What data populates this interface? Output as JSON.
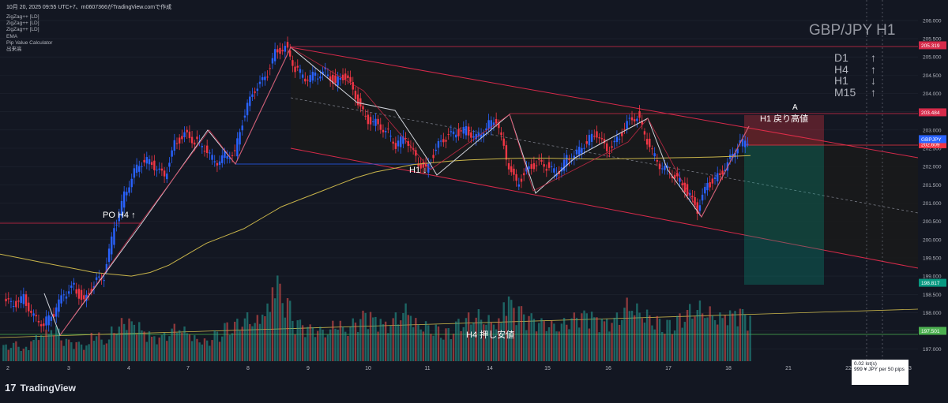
{
  "header": {
    "timestamp_text": "10月 20, 2025 09:55 UTC+7、m0607366がTradingView.comで作成"
  },
  "indicators": [
    "ZigZag++ [LD]",
    "ZigZag++ [LD]",
    "ZigZag++ [LD]",
    "EMA",
    "Pip Value Calculator",
    "出来高"
  ],
  "symbol_title": "GBP/JPY H1",
  "timeframes": [
    {
      "tf": "D1",
      "arrow": "↑"
    },
    {
      "tf": "H4",
      "arrow": "↑"
    },
    {
      "tf": "H1",
      "arrow": "↓"
    },
    {
      "tf": "M15",
      "arrow": "↑"
    }
  ],
  "annotations": {
    "po_h4": "PO H4 ↑",
    "h1_down": "H1 ↓",
    "h1_high": "H1 戻り高値",
    "point_a": "A",
    "h4_low": "H4 押し安値"
  },
  "calculator": {
    "lots": "0.02 lot(s)",
    "pips": "999 ¥ JPY per 50 pips"
  },
  "brand": {
    "logo_text": "TradingView"
  },
  "colors": {
    "background": "#131722",
    "bull": "#2962ff",
    "bear": "#f23645",
    "ema": "#c8b44a",
    "channel": "#d62a4a",
    "vol_bull": "#26a69a",
    "vol_bear": "#ef5350"
  },
  "chart_data": {
    "type": "candlestick",
    "symbol": "GBPJPY",
    "x_ticks": [
      "2",
      "3",
      "4",
      "7",
      "8",
      "9",
      "10",
      "11",
      "14",
      "15",
      "16",
      "17",
      "18",
      "21",
      "22",
      "23"
    ],
    "y_ticks": [
      197.0,
      197.5,
      198.0,
      198.5,
      199.0,
      199.5,
      200.0,
      200.5,
      201.0,
      201.5,
      202.0,
      202.5,
      203.0,
      203.5,
      204.0,
      204.5,
      205.0,
      205.5,
      206.0
    ],
    "ylim": [
      196.8,
      206.3
    ],
    "price_labels": [
      {
        "value": "205.319",
        "price": 205.319,
        "color": "#d62a4a"
      },
      {
        "value": "203.484",
        "price": 203.484,
        "color": "#d62a4a"
      },
      {
        "value": "202.609",
        "price": 202.609,
        "color": "#f23645"
      },
      {
        "value": "GBPJPY",
        "price": 202.75,
        "color": "#2962ff"
      },
      {
        "value": "198.817",
        "price": 198.817,
        "color": "#089981"
      },
      {
        "value": "197.501",
        "price": 197.501,
        "color": "#4caf50"
      }
    ],
    "close_series": [
      198.3,
      198.2,
      198.4,
      197.9,
      197.7,
      198.0,
      198.5,
      198.7,
      198.3,
      198.8,
      199.0,
      200.3,
      201.2,
      201.9,
      202.2,
      202.0,
      201.7,
      202.6,
      202.9,
      202.7,
      202.5,
      202.1,
      202.3,
      202.4,
      203.5,
      204.1,
      204.4,
      205.1,
      205.3,
      204.7,
      204.4,
      204.5,
      204.6,
      204.3,
      204.5,
      203.9,
      203.3,
      203.2,
      203.0,
      202.6,
      202.8,
      202.2,
      201.9,
      202.5,
      202.8,
      202.9,
      203.0,
      202.8,
      203.1,
      203.3,
      202.2,
      201.5,
      201.9,
      202.1,
      202.0,
      201.8,
      202.2,
      202.4,
      202.7,
      202.9,
      202.4,
      202.7,
      203.2,
      203.4,
      202.7,
      202.1,
      201.9,
      201.7,
      201.3,
      200.8,
      201.5,
      201.7,
      202.1,
      202.6,
      202.7
    ],
    "volume": [
      12,
      14,
      10,
      18,
      22,
      25,
      16,
      14,
      12,
      20,
      15,
      24,
      30,
      28,
      22,
      18,
      20,
      26,
      24,
      18,
      16,
      22,
      28,
      30,
      34,
      32,
      40,
      60,
      45,
      30,
      26,
      24,
      22,
      28,
      24,
      30,
      36,
      32,
      28,
      34,
      40,
      30,
      28,
      26,
      24,
      30,
      34,
      36,
      32,
      30,
      46,
      40,
      34,
      30,
      28,
      26,
      30,
      34,
      36,
      32,
      30,
      34,
      44,
      40,
      36,
      32,
      30,
      34,
      40,
      42,
      38,
      34,
      36,
      38,
      34
    ],
    "ema_series": [
      199.6,
      199.5,
      199.4,
      199.3,
      199.2,
      199.1,
      199.05,
      199.0,
      199.1,
      199.3,
      199.6,
      199.9,
      200.1,
      200.3,
      200.6,
      200.9,
      201.1,
      201.3,
      201.5,
      201.7,
      201.85,
      201.95,
      202.05,
      202.1,
      202.15,
      202.18,
      202.2,
      202.22,
      202.23,
      202.23,
      202.22,
      202.21,
      202.2,
      202.21,
      202.22,
      202.23,
      202.24,
      202.25,
      202.26,
      202.28,
      202.3
    ]
  }
}
